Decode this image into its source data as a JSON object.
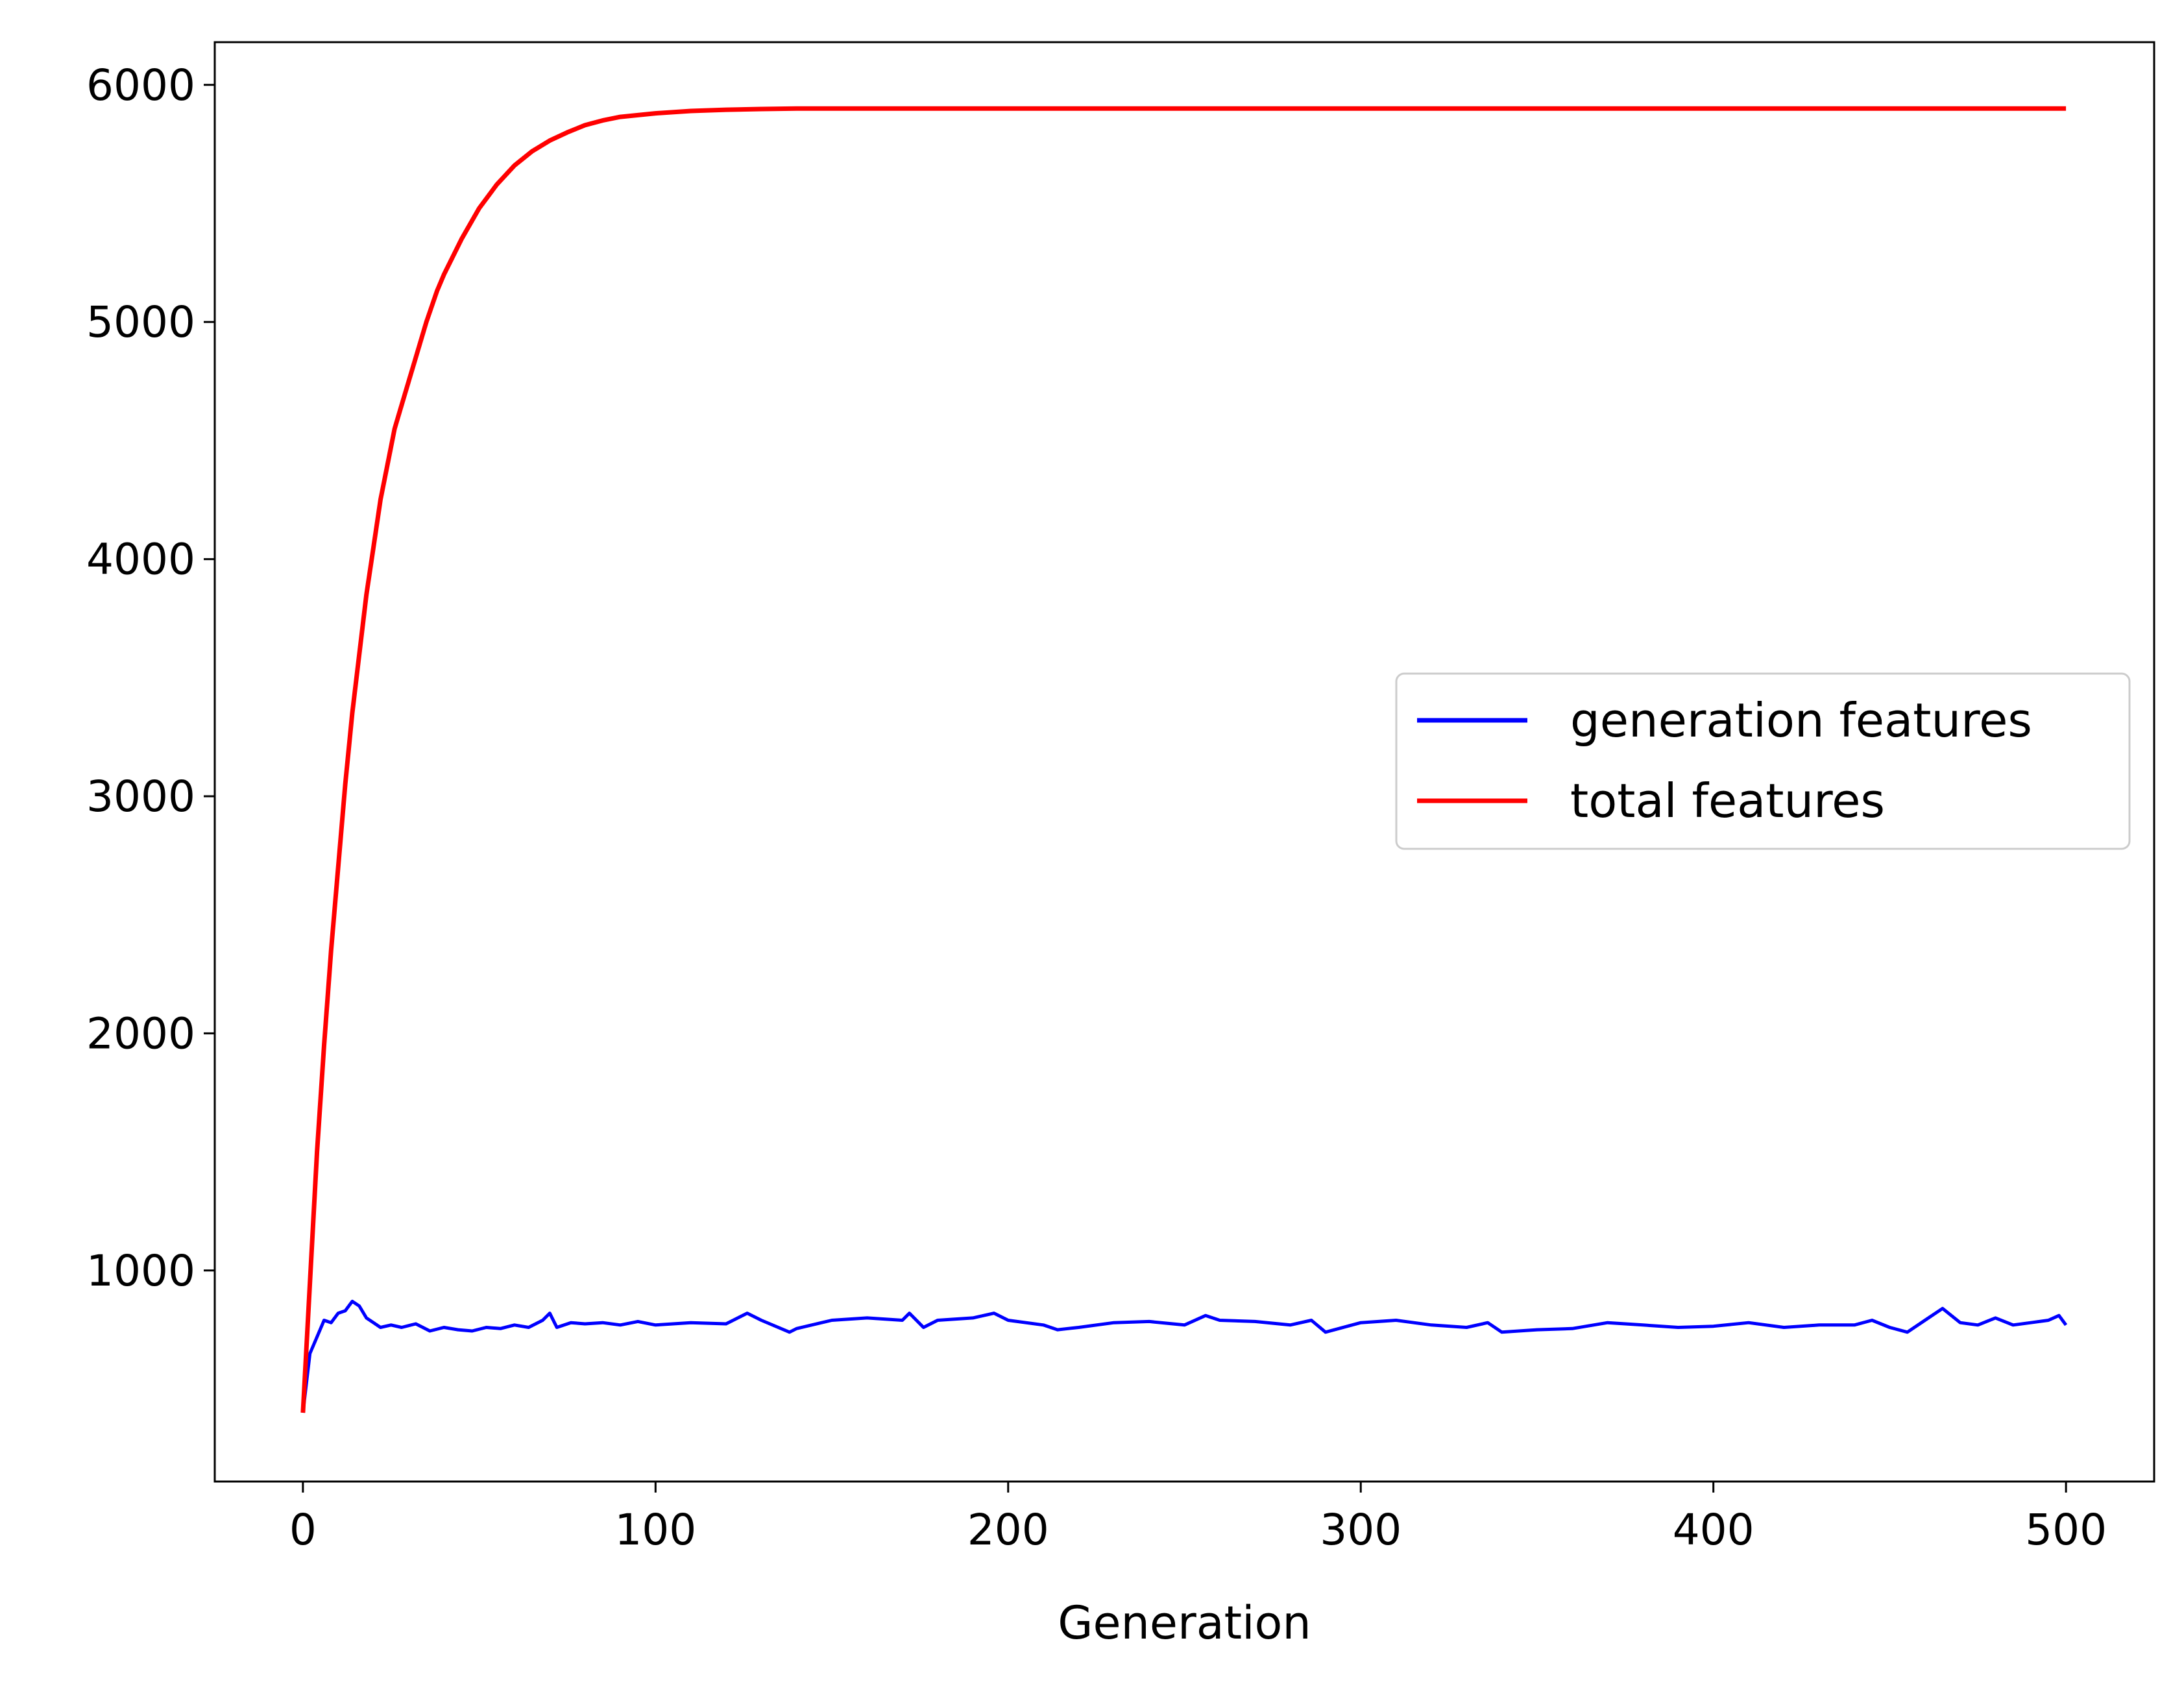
{
  "chart_data": {
    "type": "line",
    "title": "",
    "xlabel": "Generation",
    "ylabel": "",
    "xlim": [
      -25,
      525
    ],
    "ylim": [
      110,
      6180
    ],
    "xticks": [
      0,
      100,
      200,
      300,
      400,
      500
    ],
    "yticks": [
      1000,
      2000,
      3000,
      4000,
      5000,
      6000
    ],
    "grid": false,
    "legend_position": "center-right",
    "series": [
      {
        "name": "generation features",
        "color": "#0000ff",
        "x": [
          0,
          2,
          4,
          6,
          8,
          10,
          12,
          14,
          16,
          18,
          20,
          22,
          25,
          28,
          32,
          36,
          40,
          44,
          48,
          52,
          56,
          60,
          64,
          68,
          70,
          72,
          76,
          80,
          85,
          90,
          95,
          100,
          110,
          120,
          126,
          130,
          138,
          140,
          150,
          160,
          170,
          172,
          176,
          180,
          190,
          196,
          200,
          210,
          214,
          220,
          230,
          240,
          250,
          256,
          260,
          270,
          280,
          286,
          290,
          300,
          310,
          320,
          330,
          336,
          340,
          350,
          360,
          370,
          380,
          390,
          400,
          410,
          420,
          430,
          440,
          445,
          450,
          455,
          460,
          465,
          470,
          475,
          480,
          485,
          490,
          495,
          498,
          500
        ],
        "y": [
          400,
          650,
          720,
          790,
          780,
          820,
          830,
          870,
          850,
          800,
          780,
          760,
          770,
          760,
          775,
          745,
          760,
          750,
          745,
          760,
          755,
          770,
          760,
          790,
          820,
          760,
          780,
          775,
          780,
          770,
          785,
          770,
          780,
          775,
          820,
          790,
          740,
          755,
          790,
          800,
          790,
          820,
          760,
          790,
          800,
          820,
          790,
          770,
          750,
          760,
          780,
          785,
          770,
          810,
          790,
          785,
          770,
          790,
          740,
          780,
          790,
          770,
          760,
          780,
          740,
          750,
          755,
          780,
          770,
          760,
          765,
          780,
          760,
          770,
          770,
          790,
          760,
          740,
          790,
          840,
          780,
          770,
          800,
          770,
          780,
          790,
          810,
          770
        ]
      },
      {
        "name": "total features",
        "color": "#ff0000",
        "x": [
          0,
          2,
          4,
          6,
          8,
          10,
          12,
          14,
          16,
          18,
          20,
          22,
          24,
          26,
          28,
          30,
          32,
          35,
          38,
          40,
          45,
          50,
          55,
          60,
          65,
          70,
          75,
          80,
          85,
          90,
          100,
          110,
          120,
          130,
          140,
          150,
          160,
          180,
          200,
          250,
          300,
          350,
          400,
          450,
          500
        ],
        "y": [
          400,
          950,
          1500,
          1950,
          2350,
          2700,
          3050,
          3350,
          3600,
          3850,
          4050,
          4250,
          4400,
          4550,
          4650,
          4750,
          4850,
          5000,
          5130,
          5200,
          5350,
          5480,
          5580,
          5660,
          5720,
          5765,
          5800,
          5830,
          5850,
          5865,
          5880,
          5890,
          5895,
          5898,
          5900,
          5900,
          5900,
          5900,
          5900,
          5900,
          5900,
          5900,
          5900,
          5900,
          5900
        ]
      }
    ]
  }
}
